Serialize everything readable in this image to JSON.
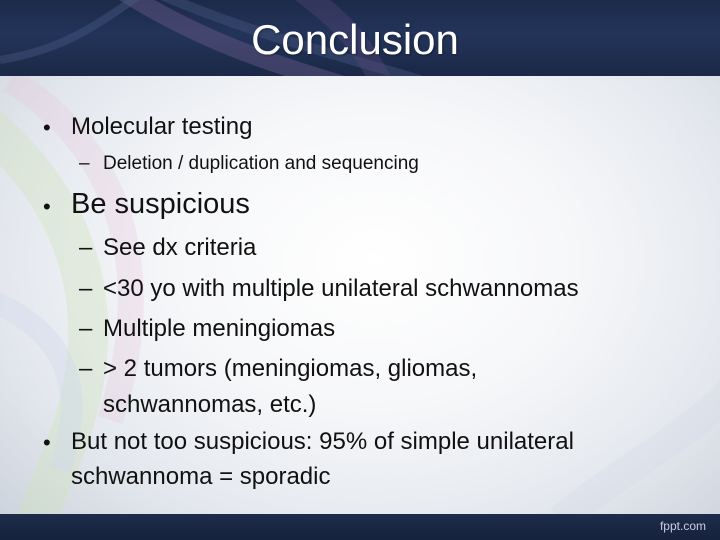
{
  "slide": {
    "title": "Conclusion",
    "items": [
      {
        "level": 1,
        "text": "Molecular testing"
      },
      {
        "level": 2,
        "text": "Deletion / duplication and sequencing"
      },
      {
        "level": 1,
        "text": "Be suspicious"
      },
      {
        "level": 2,
        "text": "See dx criteria"
      },
      {
        "level": 2,
        "text": "<30 yo with multiple unilateral schwannomas"
      },
      {
        "level": 2,
        "text": "Multiple meningiomas"
      },
      {
        "level": 2,
        "text": "> 2 tumors (meningiomas, gliomas,",
        "continuation": "schwannomas, etc.)"
      },
      {
        "level": 1,
        "text": "But not too suspicious: 95% of simple unilateral",
        "continuation": "schwannoma = sporadic"
      }
    ],
    "bullet_glyph": "•",
    "dash_glyph": "–",
    "footer": "fppt.com"
  },
  "colors": {
    "title_bar": "#1c2a4a",
    "title_text": "#ffffff",
    "body_text": "#111111",
    "footer_bar": "#16223c"
  }
}
